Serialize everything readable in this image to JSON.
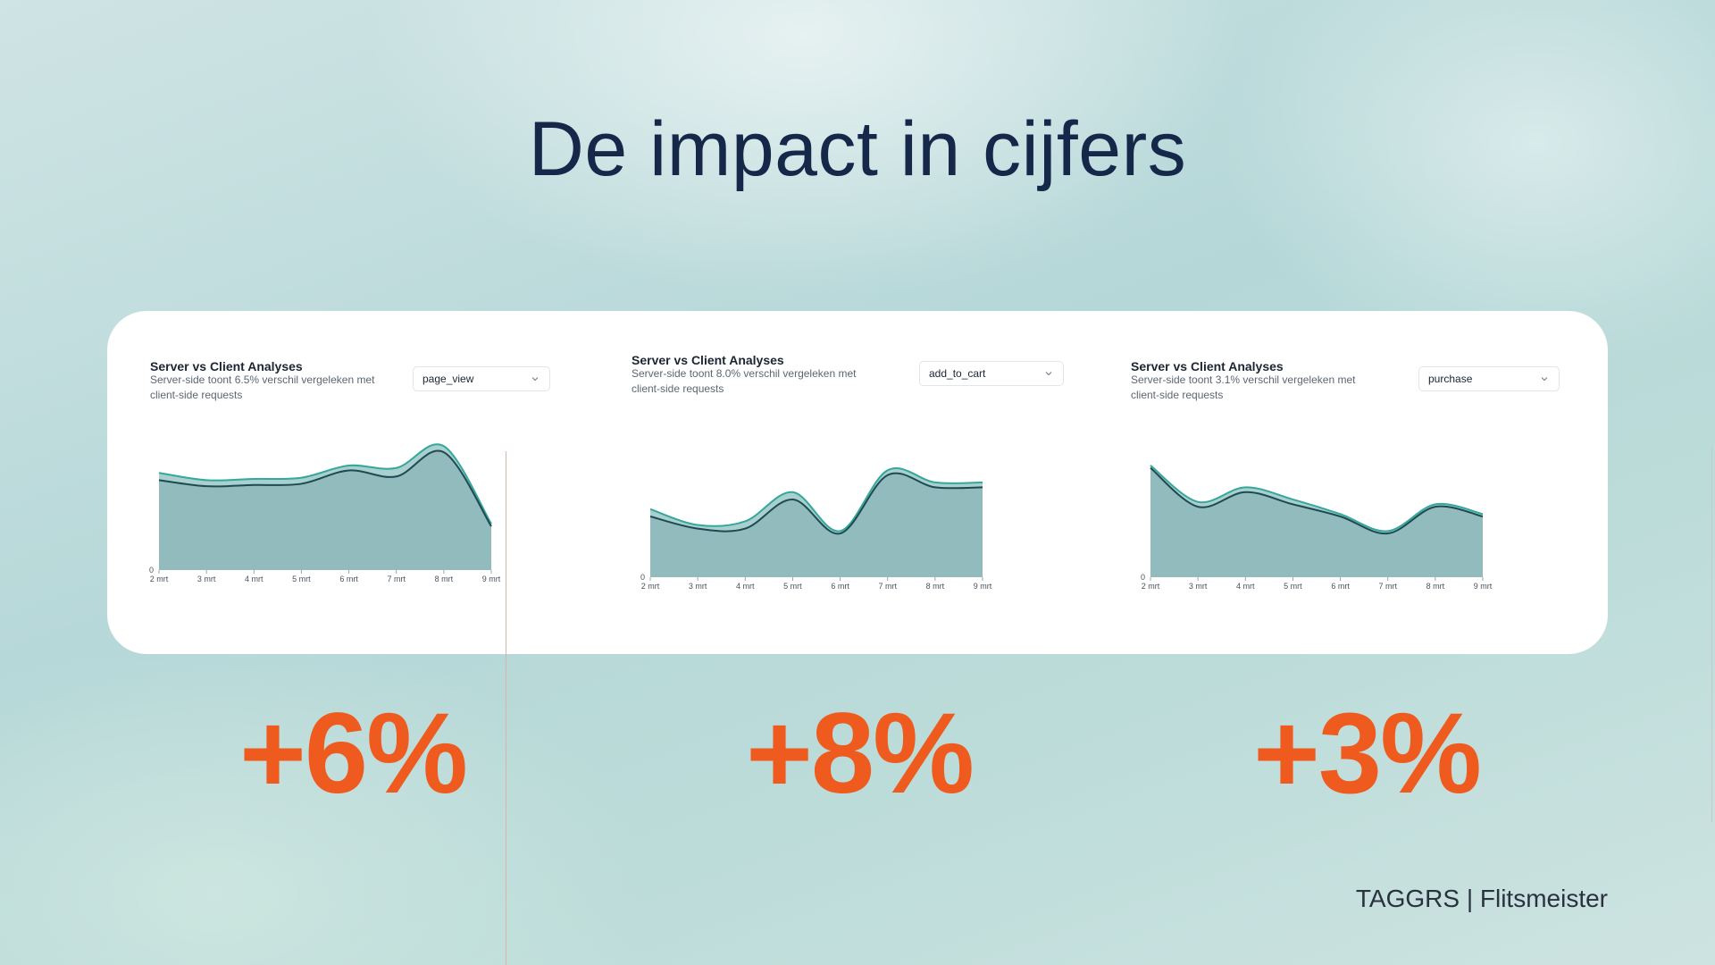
{
  "title": "De impact in cijfers",
  "brand": "TAGGRS | Flitsmeister",
  "colors": {
    "accent": "#ef5b1f",
    "area": "#91bbbc",
    "line_dark": "#1f4a52",
    "line_teal": "#35a79b"
  },
  "panels": [
    {
      "title": "Server vs Client Analyses",
      "subtitle": "Server-side toont 6.5% verschil vergeleken met client-side requests",
      "select": "page_view",
      "big_number": "+6%"
    },
    {
      "title": "Server vs Client Analyses",
      "subtitle": "Server-side toont 8.0% verschil vergeleken met client-side requests",
      "select": "add_to_cart",
      "big_number": "+8%"
    },
    {
      "title": "Server vs Client Analyses",
      "subtitle": "Server-side toont 3.1% verschil vergeleken met client-side requests",
      "select": "purchase",
      "big_number": "+3%"
    }
  ],
  "chart_data": [
    {
      "type": "area",
      "categories": [
        "2 mrt",
        "3 mrt",
        "4 mrt",
        "5 mrt",
        "6 mrt",
        "7 mrt",
        "8 mrt",
        "9 mrt"
      ],
      "ylabel_ticks": [
        "0"
      ],
      "ylim": [
        0,
        100
      ],
      "series": [
        {
          "values": [
            80,
            74,
            75,
            76,
            86,
            84,
            102,
            38
          ]
        },
        {
          "values": [
            74,
            69,
            70,
            71,
            82,
            77,
            97,
            36
          ]
        }
      ]
    },
    {
      "type": "area",
      "categories": [
        "2 mrt",
        "3 mrt",
        "4 mrt",
        "5 mrt",
        "6 mrt",
        "7 mrt",
        "8 mrt",
        "9 mrt"
      ],
      "ylabel_ticks": [
        "0"
      ],
      "ylim": [
        0,
        100
      ],
      "series": [
        {
          "values": [
            56,
            43,
            46,
            70,
            38,
            88,
            78,
            78
          ]
        },
        {
          "values": [
            50,
            40,
            40,
            64,
            36,
            84,
            74,
            74
          ]
        }
      ]
    },
    {
      "type": "area",
      "categories": [
        "2 mrt",
        "3 mrt",
        "4 mrt",
        "5 mrt",
        "6 mrt",
        "7 mrt",
        "8 mrt",
        "9 mrt"
      ],
      "ylabel_ticks": [
        "0"
      ],
      "ylim": [
        0,
        100
      ],
      "series": [
        {
          "values": [
            92,
            62,
            74,
            64,
            52,
            38,
            60,
            52
          ]
        },
        {
          "values": [
            90,
            58,
            70,
            60,
            50,
            36,
            58,
            50
          ]
        }
      ]
    }
  ]
}
